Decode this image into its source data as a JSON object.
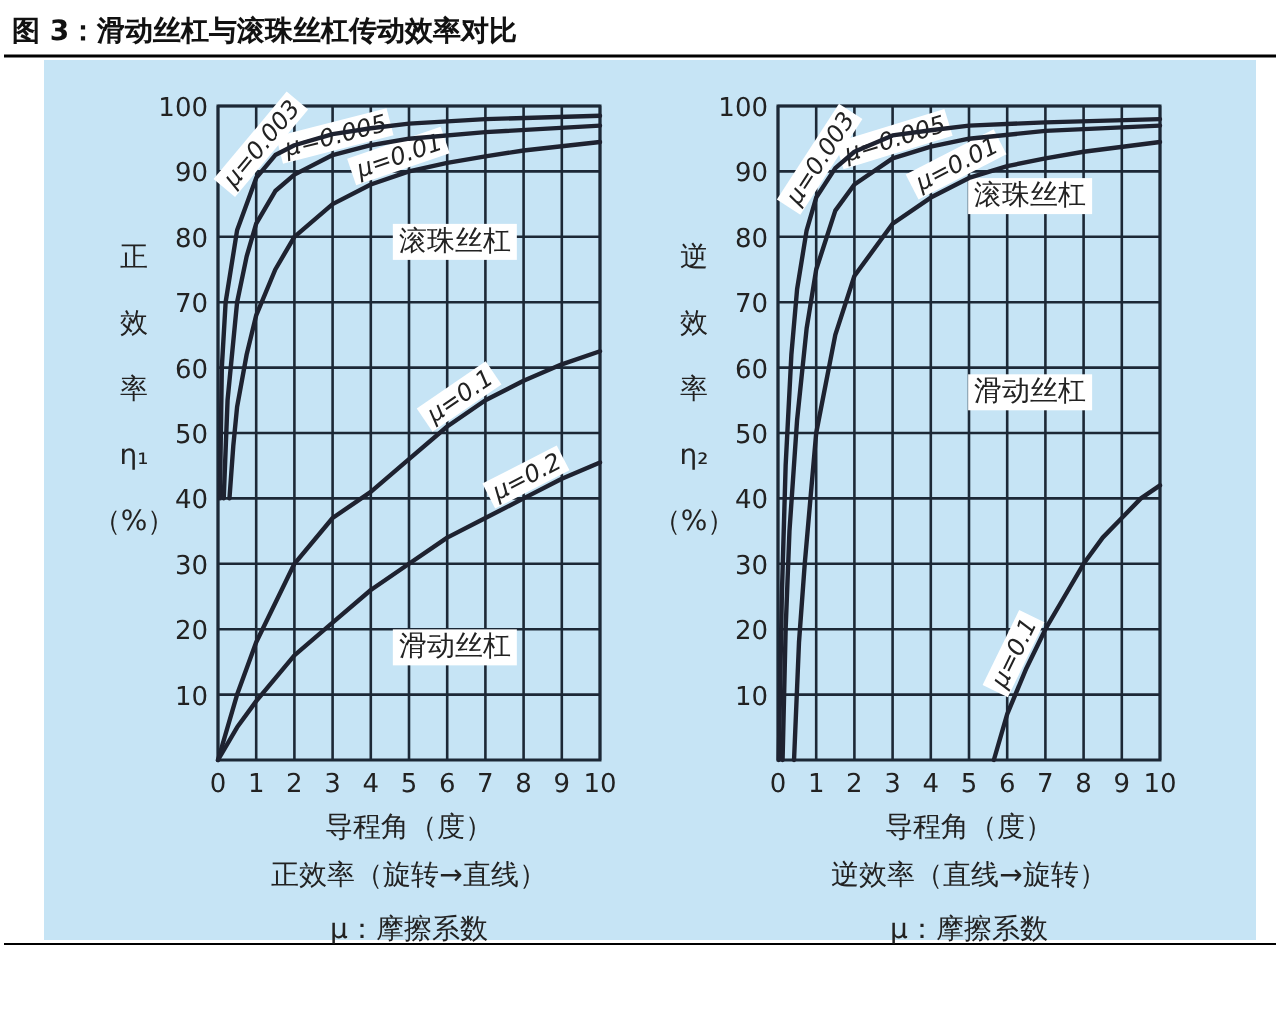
{
  "chart_data": [
    {
      "type": "line",
      "title": "图 3：滑动丝杠与滚珠丝杠传动效率对比",
      "xlabel": "导程角（度）",
      "ylabel": "正效率η₁（%）",
      "xlim": [
        0,
        10
      ],
      "ylim": [
        0,
        100
      ],
      "xticks": [
        0,
        1,
        2,
        3,
        4,
        5,
        6,
        7,
        8,
        9,
        10
      ],
      "yticks": [
        10,
        20,
        30,
        40,
        50,
        60,
        70,
        80,
        90,
        100
      ],
      "grid": true,
      "marker": "none",
      "line_style": "solid",
      "series": [
        {
          "name": "μ=0.003",
          "color": "#1e2230",
          "x": [
            0.05,
            0.1,
            0.2,
            0.5,
            1,
            1.5,
            2,
            3,
            4,
            5,
            7,
            10
          ],
          "values": [
            40,
            60,
            70,
            81,
            89,
            92.5,
            94,
            95.7,
            96.6,
            97.3,
            98,
            98.5
          ]
        },
        {
          "name": "μ=0.005",
          "color": "#1e2230",
          "x": [
            0.15,
            0.25,
            0.5,
            0.75,
            1,
            1.5,
            2,
            3,
            4,
            5,
            7,
            10
          ],
          "values": [
            40,
            55,
            70,
            77,
            82,
            87,
            89.5,
            92.5,
            94,
            95,
            96,
            97
          ]
        },
        {
          "name": "μ=0.01",
          "color": "#1e2230",
          "x": [
            0.3,
            0.4,
            0.5,
            0.75,
            1,
            1.5,
            2,
            3,
            4,
            5,
            6,
            7,
            8,
            10
          ],
          "values": [
            40,
            48,
            54,
            62,
            68,
            75,
            80,
            85,
            88,
            90,
            91.3,
            92.3,
            93.2,
            94.5
          ]
        },
        {
          "name": "μ=0.1",
          "color": "#1e2230",
          "x": [
            0,
            0.5,
            1,
            2,
            3,
            4,
            5,
            6,
            7,
            8,
            9,
            10
          ],
          "values": [
            0,
            10,
            18,
            30,
            37,
            41,
            46,
            51,
            55,
            58,
            60.5,
            62.5
          ]
        },
        {
          "name": "μ=0.2",
          "color": "#1e2230",
          "x": [
            0,
            0.5,
            1,
            2,
            3,
            4,
            5,
            6,
            7,
            8,
            9,
            10
          ],
          "values": [
            0,
            5,
            9,
            16,
            21,
            26,
            30,
            34,
            37,
            40,
            43,
            45.5
          ]
        }
      ],
      "annotations": [
        "滚珠丝杠",
        "滑动丝杠",
        "正效率（旋转→直线）",
        "μ：摩擦系数"
      ]
    },
    {
      "type": "line",
      "xlabel": "导程角（度）",
      "ylabel": "逆效率η₂（%）",
      "xlim": [
        0,
        10
      ],
      "ylim": [
        0,
        100
      ],
      "xticks": [
        0,
        1,
        2,
        3,
        4,
        5,
        6,
        7,
        8,
        9,
        10
      ],
      "yticks": [
        10,
        20,
        30,
        40,
        50,
        60,
        70,
        80,
        90,
        100
      ],
      "grid": true,
      "marker": "none",
      "line_style": "solid",
      "series": [
        {
          "name": "μ=0.003",
          "color": "#1e2230",
          "x": [
            0.02,
            0.1,
            0.2,
            0.35,
            0.5,
            0.75,
            1,
            1.5,
            2,
            3,
            4,
            5,
            7,
            10
          ],
          "values": [
            0,
            25,
            45,
            62,
            72,
            81,
            86,
            90.5,
            93,
            95.5,
            96.3,
            97,
            97.5,
            98
          ]
        },
        {
          "name": "μ=0.005",
          "color": "#1e2230",
          "x": [
            0.12,
            0.2,
            0.3,
            0.5,
            0.75,
            1,
            1.5,
            2,
            3,
            4,
            5,
            7,
            10
          ],
          "values": [
            0,
            20,
            35,
            52,
            66,
            75,
            84,
            88,
            92,
            93.8,
            95,
            96.2,
            97
          ]
        },
        {
          "name": "μ=0.01",
          "color": "#1e2230",
          "x": [
            0.42,
            0.55,
            0.7,
            1,
            1.5,
            2,
            3,
            4,
            5,
            6,
            7,
            8,
            10
          ],
          "values": [
            0,
            18,
            30,
            50,
            65,
            74,
            82,
            86,
            89,
            90.8,
            92,
            93,
            94.5
          ]
        },
        {
          "name": "μ=0.1",
          "color": "#1e2230",
          "x": [
            5.65,
            6,
            6.5,
            7,
            7.5,
            8,
            8.5,
            9,
            9.5,
            10
          ],
          "values": [
            0,
            7,
            14,
            20,
            25,
            30,
            34,
            37,
            40,
            42
          ]
        }
      ],
      "annotations": [
        "滚珠丝杠",
        "滑动丝杠",
        "逆效率（直线→旋转）",
        "μ：摩擦系数"
      ]
    }
  ]
}
